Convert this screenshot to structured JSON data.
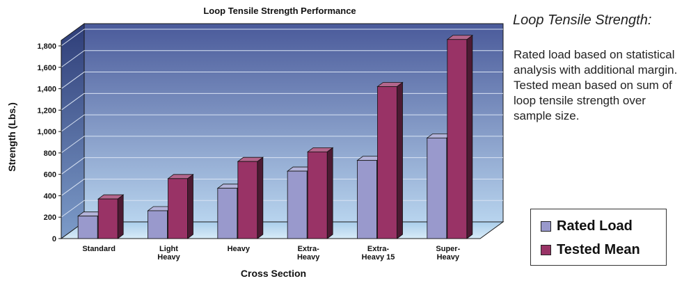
{
  "chart_data": {
    "type": "bar",
    "title": "Loop Tensile Strength Performance",
    "xlabel": "Cross Section",
    "ylabel": "Strength (Lbs.)",
    "ylim": [
      0,
      1800
    ],
    "y_ticks": [
      "0",
      "200",
      "400",
      "600",
      "800",
      "1,000",
      "1,200",
      "1,400",
      "1,600",
      "1,800"
    ],
    "categories": [
      [
        "Standard"
      ],
      [
        "Light",
        "Heavy"
      ],
      [
        "Heavy"
      ],
      [
        "Extra-",
        "Heavy"
      ],
      [
        "Extra-",
        "Heavy 15"
      ],
      [
        "Super-",
        "Heavy"
      ]
    ],
    "series": [
      {
        "name": "Rated Load",
        "values": [
          210,
          260,
          470,
          630,
          730,
          940
        ],
        "color": "#9999cc"
      },
      {
        "name": "Tested Mean",
        "values": [
          370,
          560,
          720,
          810,
          1420,
          1860
        ],
        "color": "#993366"
      }
    ],
    "grid": true,
    "legend_position": "bottom-right",
    "style": "3d-bar"
  },
  "side_panel": {
    "title": "Loop Tensile Strength:",
    "description": "Rated load based on statistical analysis with additional margin. Tested mean based on sum of loop tensile strength over sample size."
  },
  "legend": {
    "items": [
      {
        "label": "Rated Load",
        "color": "#9999cc"
      },
      {
        "label": "Tested Mean",
        "color": "#993366"
      }
    ]
  }
}
